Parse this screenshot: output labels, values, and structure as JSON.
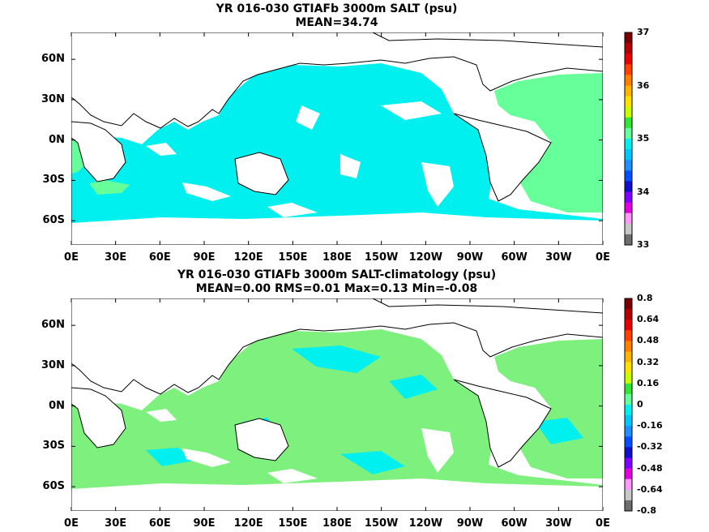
{
  "panel_top": {
    "title_line1": "YR 016-030 GTIAFb 3000m SALT (psu)",
    "title_line2": "MEAN=34.74",
    "colorbar_labels": [
      "37",
      "36",
      "35",
      "34",
      "33"
    ],
    "colors": [
      "#7a0000",
      "#b40000",
      "#e60000",
      "#ff4000",
      "#ff8000",
      "#ffb300",
      "#ffe000",
      "#c8ff00",
      "#33e633",
      "#66ff99",
      "#00f0f0",
      "#00c8ff",
      "#1e90ff",
      "#0050ff",
      "#1010c8",
      "#8000ff",
      "#e000e0",
      "#ff99ff",
      "#c8c8c8",
      "#6e6e6e"
    ]
  },
  "panel_bottom": {
    "title_line1": "YR 016-030 GTIAFb 3000m SALT-climatology (psu)",
    "title_line2": "MEAN=0.00   RMS=0.01   Max=0.13   Min=-0.08",
    "colorbar_labels": [
      "0.8",
      "0.64",
      "0.48",
      "0.32",
      "0.16",
      "0",
      "-0.16",
      "-0.32",
      "-0.48",
      "-0.64",
      "-0.8"
    ],
    "colors": [
      "#7a0000",
      "#b40000",
      "#e60000",
      "#ff4000",
      "#ff8000",
      "#ffb300",
      "#ffe000",
      "#c8ff00",
      "#33e633",
      "#66ff99",
      "#00f0f0",
      "#00c8ff",
      "#1e90ff",
      "#0050ff",
      "#1010c8",
      "#8000ff",
      "#e000e0",
      "#ff99ff",
      "#c8c8c8",
      "#6e6e6e"
    ]
  },
  "x_tick_labels": [
    "0E",
    "30E",
    "60E",
    "90E",
    "120E",
    "150E",
    "180E",
    "150W",
    "120W",
    "90W",
    "60W",
    "30W",
    "0E"
  ],
  "y_tick_labels": [
    "60N",
    "30N",
    "0N",
    "30S",
    "60S"
  ],
  "field_colors": {
    "top_ocean": "#00f0f0",
    "top_atlantic": "#66ff99",
    "bottom_ocean": "#7ef07e",
    "bottom_cyan": "#00f0f0",
    "land": "#ffffff"
  }
}
